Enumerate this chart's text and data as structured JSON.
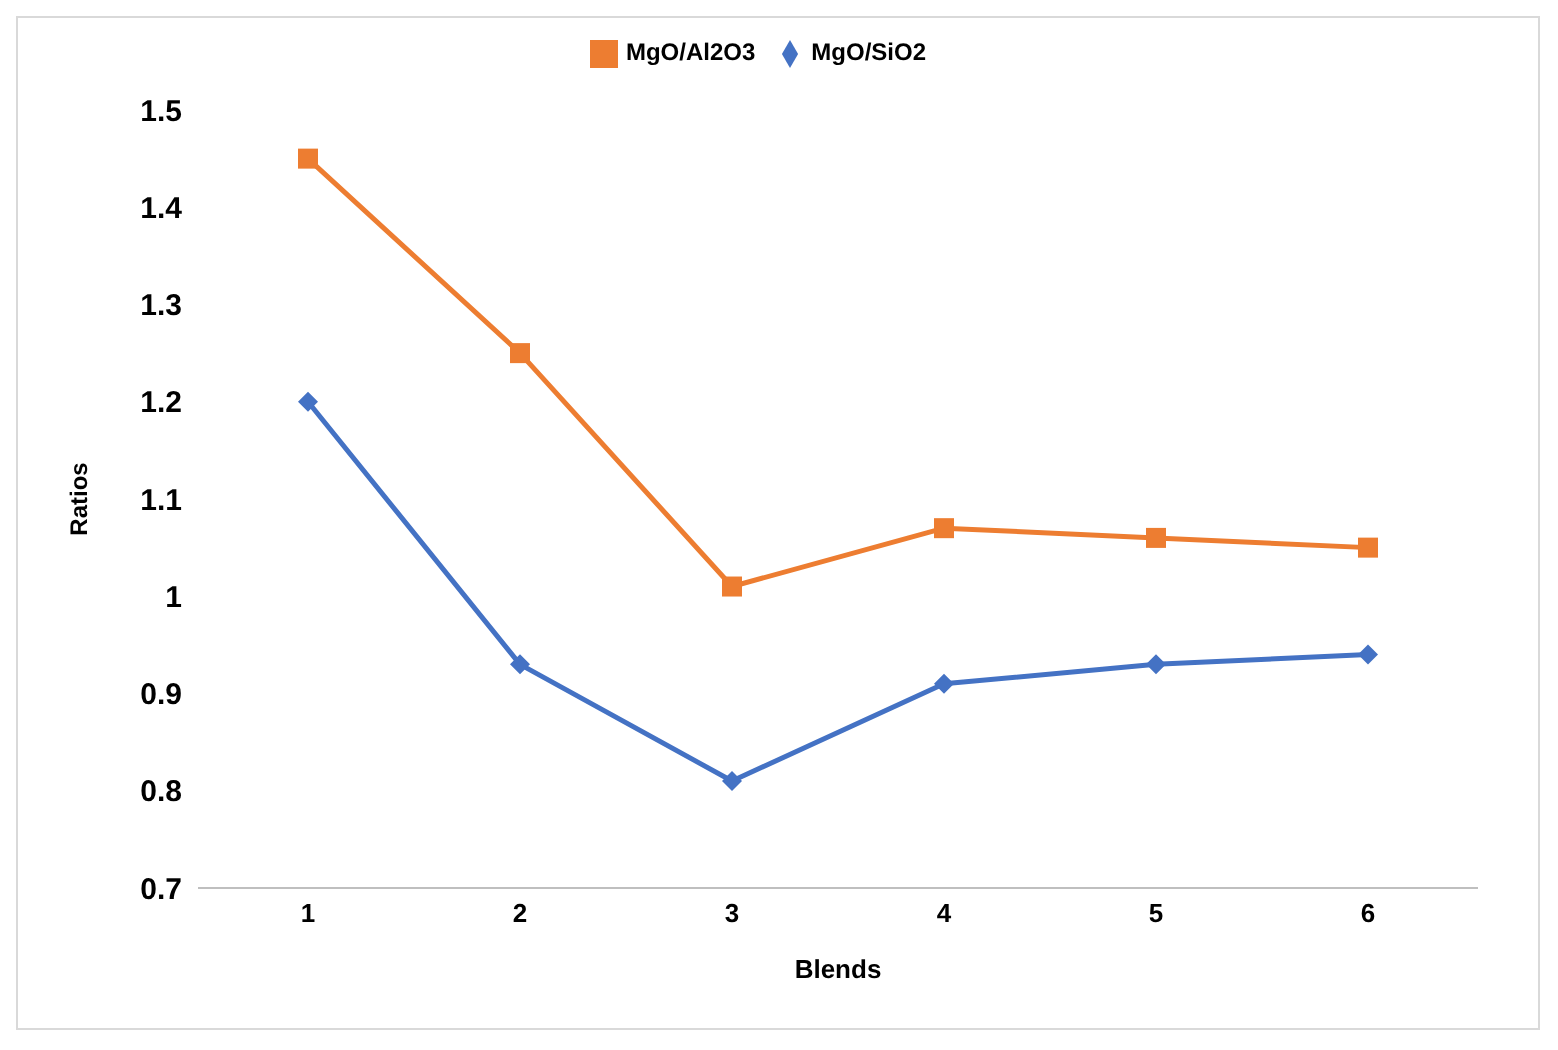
{
  "chart_data": {
    "type": "line",
    "xlabel": "Blends",
    "ylabel": "Ratios",
    "categories": [
      "1",
      "2",
      "3",
      "4",
      "5",
      "6"
    ],
    "series": [
      {
        "name": "MgO/SiO2",
        "color": "#4472c4",
        "marker": "diamond",
        "values": [
          1.2,
          0.93,
          0.81,
          0.91,
          0.93,
          0.94
        ]
      },
      {
        "name": "MgO/Al2O3",
        "color": "#ed7d31",
        "marker": "square",
        "values": [
          1.45,
          1.25,
          1.01,
          1.07,
          1.06,
          1.05
        ]
      }
    ],
    "ylim": [
      0.7,
      1.5
    ],
    "yticks": [
      0.7,
      0.8,
      0.9,
      1,
      1.1,
      1.2,
      1.3,
      1.4,
      1.5
    ],
    "grid": false,
    "legend": "top",
    "line_style": "solid"
  }
}
